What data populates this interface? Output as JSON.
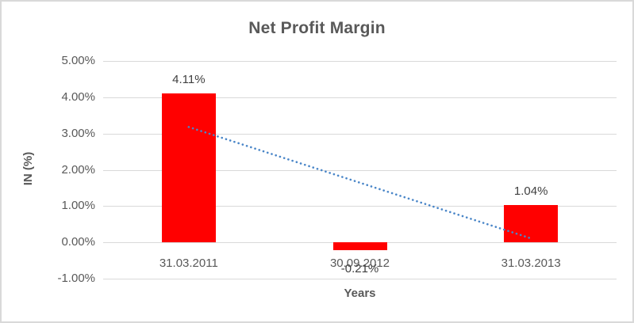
{
  "chart_data": {
    "type": "bar",
    "title": "Net Profit Margin",
    "xlabel": "Years",
    "ylabel": "IN (%)",
    "categories": [
      "31.03.2011",
      "30.09.2012",
      "31.03.2013"
    ],
    "values": [
      4.11,
      -0.21,
      1.04
    ],
    "data_labels": [
      "4.11%",
      "-0.21%",
      "1.04%"
    ],
    "ylim": [
      -1,
      5
    ],
    "yticks": {
      "values": [
        5,
        4,
        3,
        2,
        1,
        0,
        -1
      ],
      "labels": [
        "5.00%",
        "4.00%",
        "3.00%",
        "2.00%",
        "1.00%",
        "0.00%",
        "-1.00%"
      ]
    },
    "grid": true,
    "legend": "none",
    "bar_color": "#ff0000",
    "trendline": {
      "type": "linear",
      "style": "dotted",
      "color": "#4a86c8",
      "start_value": 3.18,
      "end_value": 0.11
    },
    "frame_border_color": "#d9d9d9",
    "gridline_color": "#d9d9d9",
    "title_color": "#595959",
    "axis_label_color": "#595959",
    "data_label_color": "#404040"
  }
}
